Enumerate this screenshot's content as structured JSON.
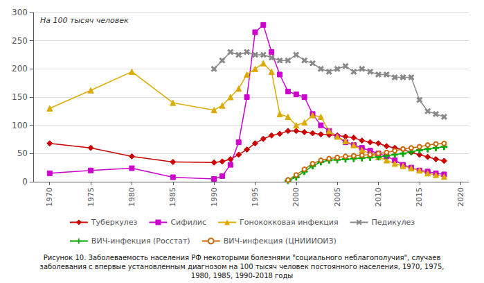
{
  "chart_data": {
    "type": "line",
    "title": "Рисунок 10. Заболеваемость населения РФ некоторыми болезнями \"социального неблагополучия\", случаев\nзаболевания с впервые установленным диагнозом на 100 тысяч человек постоянного населения, 1970, 1975,\n1980, 1985, 1990-2018 годы",
    "annotations": [
      "На 100 тысяч человек"
    ],
    "series": [
      {
        "name": "Туберкулез",
        "color": "#cc0000",
        "marker": "diamond",
        "x": [
          1970,
          1975,
          1980,
          1985,
          1990,
          1991,
          1992,
          1993,
          1994,
          1995,
          1996,
          1997,
          1998,
          1999,
          2000,
          2001,
          2002,
          2003,
          2004,
          2005,
          2006,
          2007,
          2008,
          2009,
          2010,
          2011,
          2012,
          2013,
          2014,
          2015,
          2016,
          2017,
          2018
        ],
        "values": [
          68,
          60,
          45,
          35,
          34,
          36,
          40,
          48,
          57,
          68,
          76,
          82,
          85,
          90,
          90,
          88,
          86,
          84,
          83,
          82,
          80,
          78,
          73,
          70,
          68,
          63,
          60,
          57,
          52,
          48,
          44,
          40,
          37
        ]
      },
      {
        "name": "Сифилис",
        "color": "#cc00cc",
        "marker": "square",
        "x": [
          1970,
          1975,
          1980,
          1985,
          1990,
          1991,
          1992,
          1993,
          1994,
          1995,
          1996,
          1997,
          1998,
          1999,
          2000,
          2001,
          2002,
          2003,
          2004,
          2005,
          2006,
          2007,
          2008,
          2009,
          2010,
          2011,
          2012,
          2013,
          2014,
          2015,
          2016,
          2017,
          2018
        ],
        "values": [
          15,
          20,
          24,
          8,
          5,
          10,
          30,
          70,
          150,
          265,
          278,
          230,
          190,
          160,
          155,
          150,
          120,
          100,
          90,
          80,
          70,
          65,
          60,
          55,
          50,
          45,
          38,
          30,
          25,
          20,
          18,
          15,
          13
        ]
      },
      {
        "name": "Гонококковая инфекция",
        "color": "#ddaa00",
        "marker": "triangle",
        "x": [
          1970,
          1975,
          1980,
          1985,
          1990,
          1991,
          1992,
          1993,
          1994,
          1995,
          1996,
          1997,
          1998,
          1999,
          2000,
          2001,
          2002,
          2003,
          2004,
          2005,
          2006,
          2007,
          2008,
          2009,
          2010,
          2011,
          2012,
          2013,
          2014,
          2015,
          2016,
          2017,
          2018
        ],
        "values": [
          130,
          162,
          195,
          140,
          127,
          135,
          150,
          165,
          190,
          200,
          210,
          195,
          120,
          115,
          100,
          105,
          118,
          115,
          90,
          80,
          72,
          65,
          56,
          50,
          44,
          38,
          32,
          28,
          24,
          20,
          15,
          12,
          9
        ]
      },
      {
        "name": "Педикулез",
        "color": "#888888",
        "marker": "x",
        "x": [
          1990,
          1991,
          1992,
          1993,
          1994,
          1995,
          1996,
          1997,
          1998,
          1999,
          2000,
          2001,
          2002,
          2003,
          2004,
          2005,
          2006,
          2007,
          2008,
          2009,
          2010,
          2011,
          2012,
          2013,
          2014,
          2015,
          2016,
          2017,
          2018
        ],
        "values": [
          200,
          215,
          230,
          225,
          230,
          225,
          225,
          220,
          215,
          215,
          225,
          215,
          210,
          200,
          195,
          200,
          205,
          195,
          200,
          195,
          190,
          190,
          185,
          185,
          185,
          145,
          125,
          120,
          115
        ]
      },
      {
        "name": "ВИЧ-инфекция (Росстат)",
        "color": "#00aa00",
        "marker": "plus",
        "x": [
          1999,
          2000,
          2001,
          2002,
          2003,
          2004,
          2005,
          2006,
          2007,
          2008,
          2009,
          2010,
          2011,
          2012,
          2013,
          2014,
          2015,
          2016,
          2017,
          2018
        ],
        "values": [
          2,
          8,
          18,
          28,
          35,
          38,
          39,
          40,
          41,
          42,
          43,
          44,
          46,
          48,
          50,
          53,
          56,
          58,
          60,
          62
        ]
      },
      {
        "name": "ВИЧ-инфекция (ЦНИИИОИЗ)",
        "color": "#cc6600",
        "marker": "circle_open",
        "x": [
          1999,
          2000,
          2001,
          2002,
          2003,
          2004,
          2005,
          2006,
          2007,
          2008,
          2009,
          2010,
          2011,
          2012,
          2013,
          2014,
          2015,
          2016,
          2017,
          2018
        ],
        "values": [
          3,
          12,
          22,
          32,
          38,
          41,
          43,
          45,
          46,
          47,
          48,
          50,
          52,
          55,
          58,
          60,
          62,
          65,
          67,
          68
        ]
      }
    ],
    "xlim": [
      1968,
      2021
    ],
    "xticks": [
      1970,
      1975,
      1980,
      1985,
      1990,
      1995,
      2000,
      2005,
      2010,
      2015,
      2020
    ],
    "ylim": [
      0,
      300
    ],
    "yticks": [
      0,
      50,
      100,
      150,
      200,
      250,
      300
    ],
    "grid": true,
    "legend": "bottom"
  }
}
